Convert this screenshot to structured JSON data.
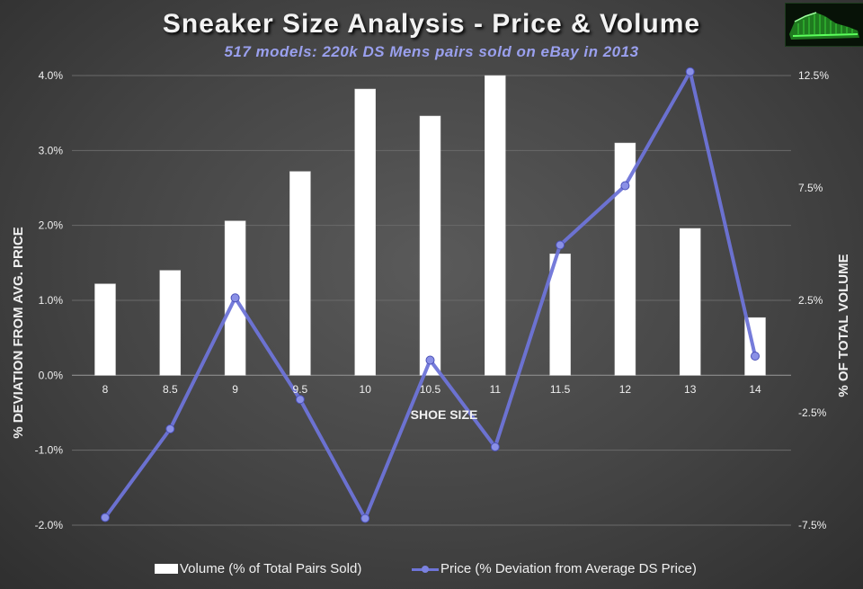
{
  "title": "Sneaker Size Analysis - Price & Volume",
  "subtitle": "517 models:  220k DS Mens pairs sold on eBay in 2013",
  "legend": {
    "volume": "Volume (% of Total Pairs Sold)",
    "price": "Price (% Deviation from Average DS Price)"
  },
  "colors": {
    "bar": "#ffffff",
    "line": "#6e74d8",
    "marker": "#8a90e6",
    "grid": "#6a6a6a",
    "text": "#f0f0f0",
    "subtitle": "#9aa0ee"
  },
  "logo_icon": "sneaker-logo-icon",
  "chart_data": {
    "type": "bar+line",
    "xlabel": "SHOE SIZE",
    "ylabel_left": "% DEVIATION FROM AVG. PRICE",
    "ylabel_right": "% OF TOTAL VOLUME",
    "categories": [
      "8",
      "8.5",
      "9",
      "9.5",
      "10",
      "10.5",
      "11",
      "11.5",
      "12",
      "13",
      "14"
    ],
    "left_axis": {
      "ylim": [
        -0.02,
        0.04
      ],
      "ticks": [
        0.04,
        0.03,
        0.02,
        0.01,
        0.0,
        -0.01,
        -0.02
      ],
      "tick_labels": [
        "4.0%",
        "3.0%",
        "2.0%",
        "1.0%",
        "0.0%",
        "-1.0%",
        "-2.0%"
      ]
    },
    "right_axis": {
      "ylim": [
        -0.075,
        0.125
      ],
      "ticks": [
        0.125,
        0.075,
        0.025,
        -0.025,
        -0.075
      ],
      "tick_labels": [
        "12.5%",
        "7.5%",
        "2.5%",
        "-2.5%",
        "-7.5%"
      ]
    },
    "series": [
      {
        "name": "Volume (% of Total Pairs Sold)",
        "type": "bar",
        "axis": "left",
        "values": [
          0.0122,
          0.014,
          0.0206,
          0.0272,
          0.0382,
          0.0346,
          0.04,
          0.0162,
          0.031,
          0.0196,
          0.0077
        ]
      },
      {
        "name": "Price (% Deviation from Average DS Price)",
        "type": "line",
        "axis": "right",
        "values": [
          -0.0716,
          -0.0322,
          0.0261,
          -0.0191,
          -0.072,
          -0.0016,
          -0.0402,
          0.0496,
          0.076,
          0.1267,
          0.0002
        ]
      }
    ],
    "grid": true,
    "legend_position": "bottom"
  }
}
